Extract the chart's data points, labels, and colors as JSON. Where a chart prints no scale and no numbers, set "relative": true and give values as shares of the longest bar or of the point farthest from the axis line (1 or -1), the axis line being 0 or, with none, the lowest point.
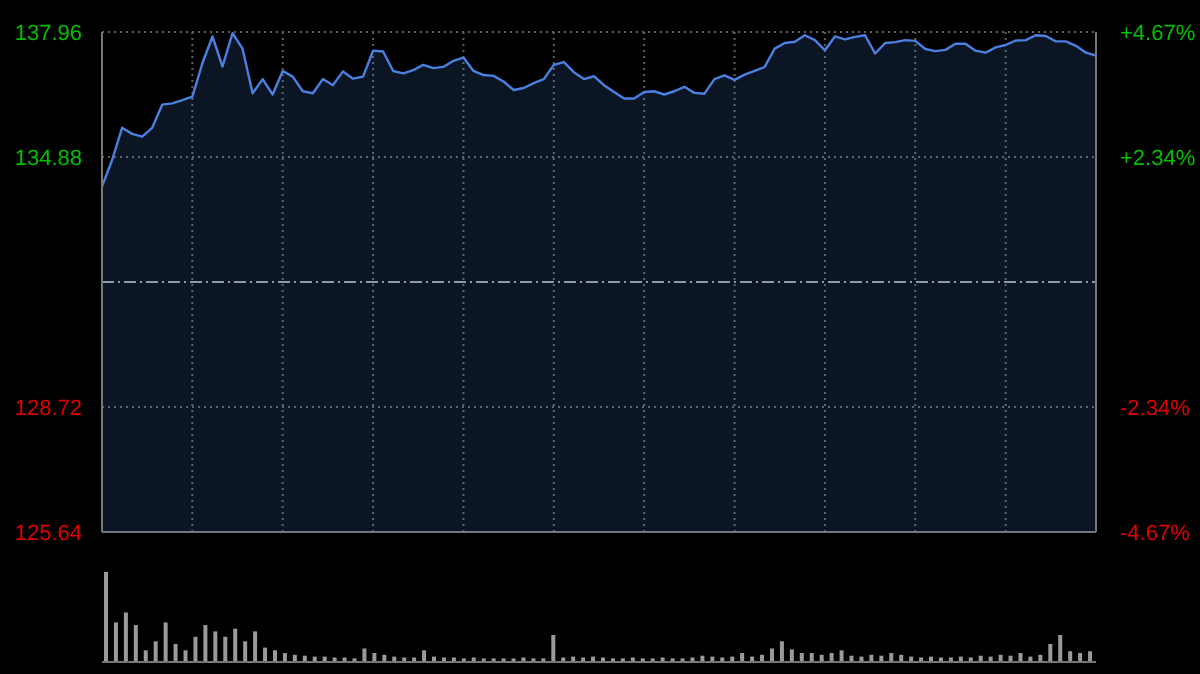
{
  "chart_data": [
    {
      "type": "area",
      "categories": [
        null,
        null,
        null,
        null,
        null,
        null,
        null,
        null,
        null,
        null,
        null,
        null,
        null,
        null,
        null,
        null,
        null,
        null,
        null,
        null,
        null,
        null,
        null,
        null,
        null,
        null,
        null,
        null,
        null,
        null,
        null,
        null,
        null,
        null,
        null,
        null,
        null,
        null,
        null,
        null,
        null,
        null,
        null,
        null,
        null,
        null,
        null,
        null,
        null,
        null,
        null,
        null,
        null,
        null,
        null,
        null,
        null,
        null,
        null,
        null,
        null,
        null,
        null,
        null,
        null,
        null,
        null,
        null,
        null,
        null,
        null,
        null,
        null,
        null,
        null,
        null,
        null,
        null,
        null,
        null,
        null,
        null,
        null,
        null,
        null,
        null,
        null,
        null,
        null,
        null,
        null,
        null,
        null,
        null,
        null,
        null,
        null,
        null,
        null,
        null
      ],
      "values": [
        134.15,
        134.8,
        135.6,
        135.45,
        135.38,
        135.6,
        136.17,
        136.2,
        136.28,
        136.37,
        137.19,
        137.85,
        137.11,
        137.93,
        137.55,
        136.45,
        136.8,
        136.42,
        137.0,
        136.86,
        136.5,
        136.45,
        136.8,
        136.65,
        136.99,
        136.81,
        136.86,
        137.5,
        137.48,
        137.0,
        136.94,
        137.02,
        137.15,
        137.07,
        137.1,
        137.25,
        137.33,
        137.0,
        136.9,
        136.88,
        136.74,
        136.53,
        136.58,
        136.7,
        136.8,
        137.15,
        137.22,
        136.97,
        136.8,
        136.87,
        136.65,
        136.48,
        136.32,
        136.32,
        136.48,
        136.5,
        136.42,
        136.5,
        136.61,
        136.46,
        136.44,
        136.8,
        136.89,
        136.78,
        136.91,
        137.0,
        137.1,
        137.55,
        137.69,
        137.72,
        137.88,
        137.76,
        137.51,
        137.85,
        137.78,
        137.84,
        137.88,
        137.43,
        137.69,
        137.71,
        137.76,
        137.74,
        137.54,
        137.49,
        137.52,
        137.67,
        137.67,
        137.5,
        137.45,
        137.58,
        137.64,
        137.75,
        137.76,
        137.88,
        137.86,
        137.73,
        137.73,
        137.62,
        137.45,
        137.38
      ],
      "color": "#4a80e0",
      "ylim": [
        125.64,
        137.96
      ],
      "yticks": [
        125.64,
        128.72,
        134.88,
        137.96
      ],
      "y2lim": [
        -4.67,
        4.67
      ],
      "y2ticks": [
        {
          "value": 4.67,
          "label": "+4.67%"
        },
        {
          "value": 2.34,
          "label": "+2.34%"
        },
        {
          "value": -2.34,
          "label": "-2.34%"
        },
        {
          "value": -4.67,
          "label": "-4.67%"
        }
      ],
      "ref_lines": [
        {
          "axis": "y",
          "value": 131.8,
          "color": "#8a9ab0",
          "line_style": "dashed"
        }
      ],
      "grid": true,
      "tick_labels": "y"
    },
    {
      "type": "bar",
      "relative": true,
      "color": "#9a9a9a",
      "categories": [
        null,
        null,
        null,
        null,
        null,
        null,
        null,
        null,
        null,
        null,
        null,
        null,
        null,
        null,
        null,
        null,
        null,
        null,
        null,
        null,
        null,
        null,
        null,
        null,
        null,
        null,
        null,
        null,
        null,
        null,
        null,
        null,
        null,
        null,
        null,
        null,
        null,
        null,
        null,
        null,
        null,
        null,
        null,
        null,
        null,
        null,
        null,
        null,
        null,
        null,
        null,
        null,
        null,
        null,
        null,
        null,
        null,
        null,
        null,
        null,
        null,
        null,
        null,
        null,
        null,
        null,
        null,
        null,
        null,
        null,
        null,
        null,
        null,
        null,
        null,
        null,
        null,
        null,
        null,
        null,
        null,
        null,
        null,
        null,
        null,
        null,
        null,
        null,
        null,
        null,
        null,
        null,
        null,
        null,
        null,
        null,
        null,
        null,
        null,
        null
      ],
      "values": [
        1.0,
        0.44,
        0.55,
        0.41,
        0.13,
        0.23,
        0.44,
        0.2,
        0.13,
        0.28,
        0.41,
        0.34,
        0.28,
        0.37,
        0.23,
        0.34,
        0.16,
        0.13,
        0.1,
        0.08,
        0.07,
        0.06,
        0.06,
        0.05,
        0.05,
        0.04,
        0.15,
        0.1,
        0.08,
        0.06,
        0.05,
        0.05,
        0.13,
        0.06,
        0.05,
        0.05,
        0.04,
        0.05,
        0.04,
        0.04,
        0.04,
        0.04,
        0.05,
        0.04,
        0.04,
        0.3,
        0.05,
        0.06,
        0.05,
        0.06,
        0.05,
        0.04,
        0.04,
        0.05,
        0.04,
        0.04,
        0.05,
        0.04,
        0.04,
        0.05,
        0.07,
        0.06,
        0.05,
        0.06,
        0.1,
        0.06,
        0.08,
        0.15,
        0.23,
        0.14,
        0.1,
        0.1,
        0.08,
        0.1,
        0.13,
        0.07,
        0.06,
        0.08,
        0.07,
        0.1,
        0.08,
        0.06,
        0.05,
        0.06,
        0.05,
        0.05,
        0.06,
        0.05,
        0.07,
        0.06,
        0.08,
        0.07,
        0.1,
        0.06,
        0.08,
        0.2,
        0.3,
        0.12,
        0.1,
        0.12
      ]
    }
  ]
}
